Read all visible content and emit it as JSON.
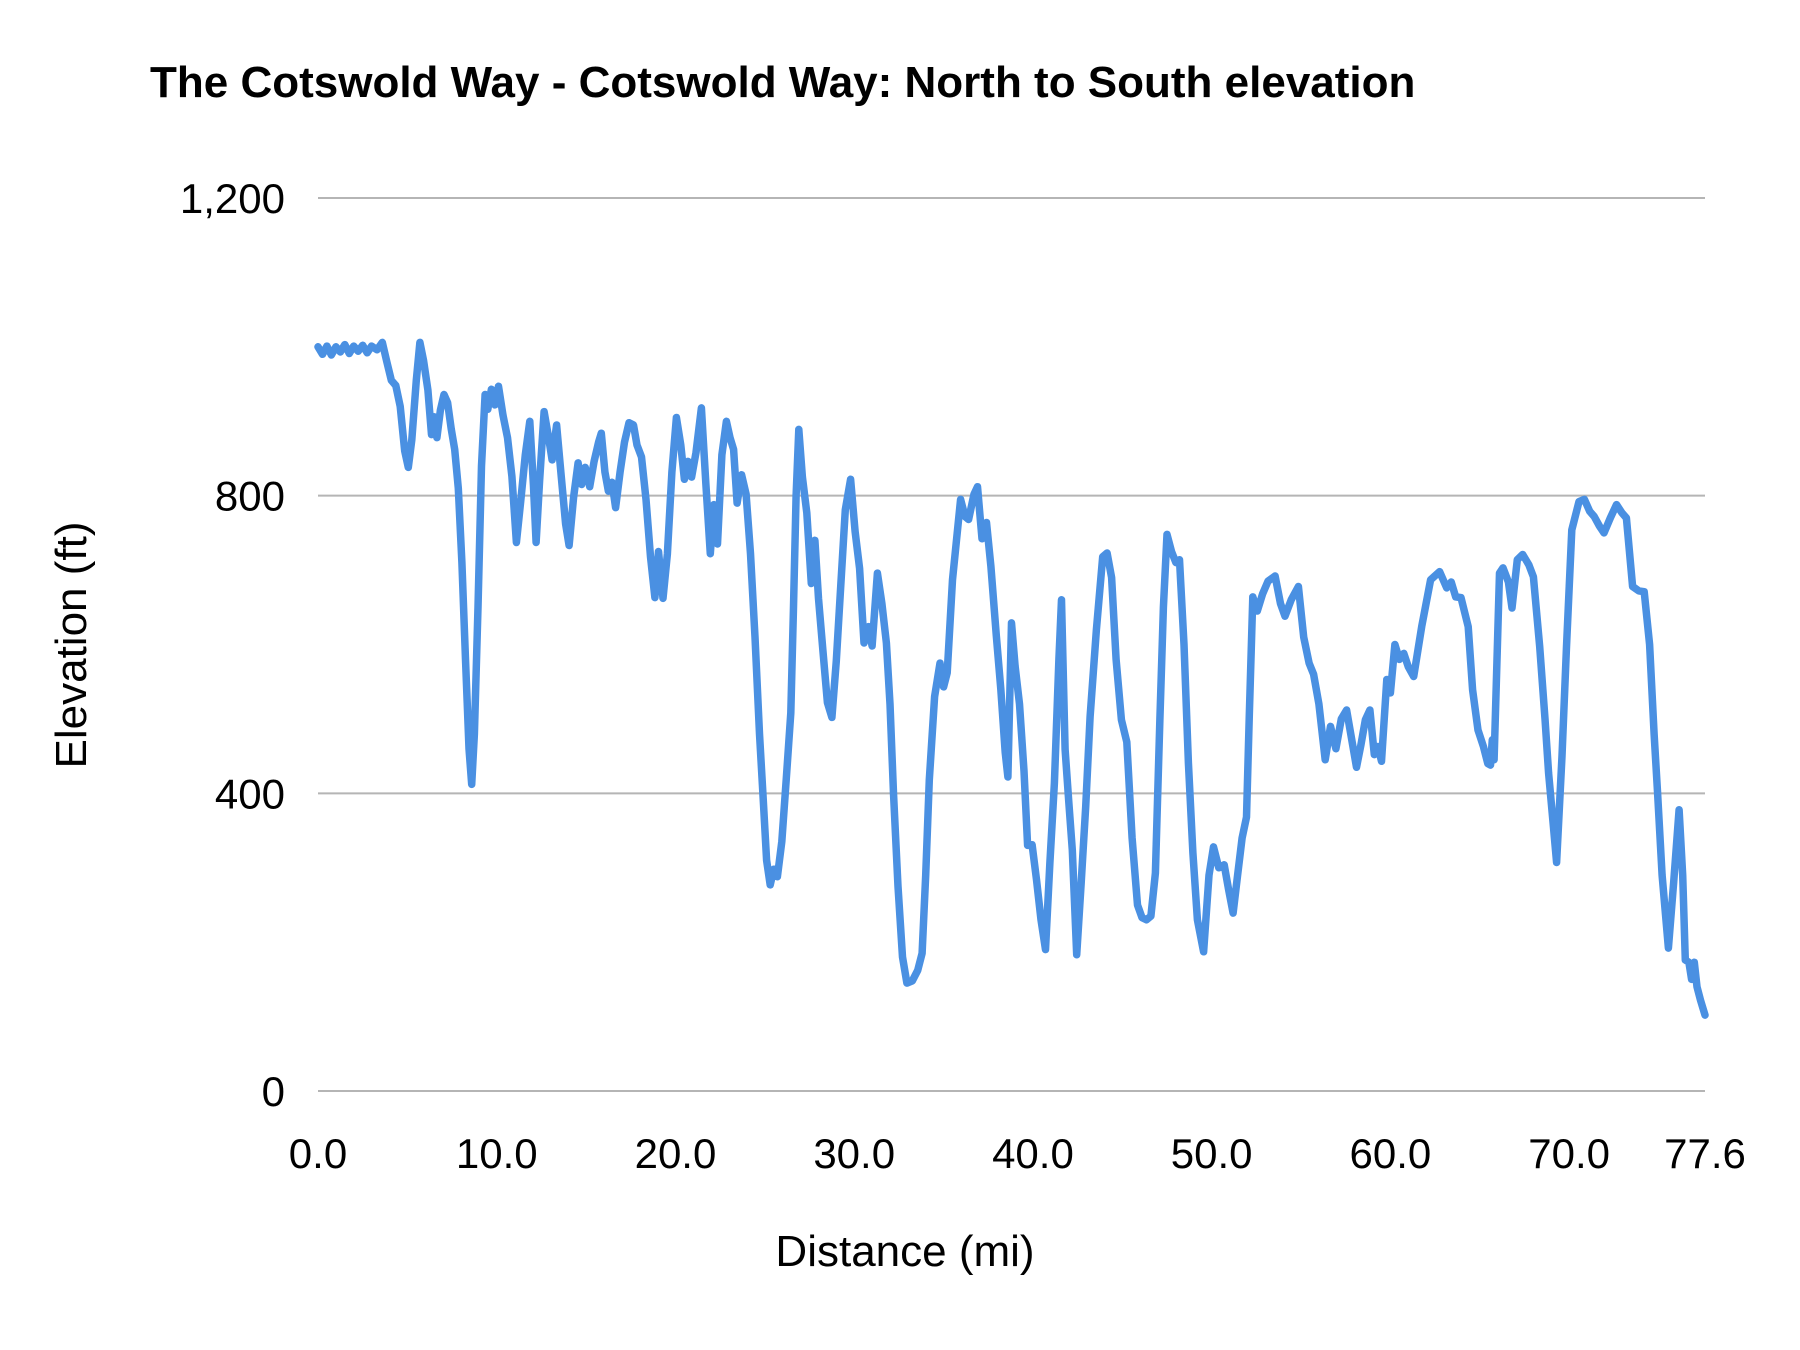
{
  "chart_data": {
    "type": "line",
    "title": "The Cotswold Way - Cotswold Way: North to South elevation",
    "xlabel": "Distance (mi)",
    "ylabel": "Elevation (ft)",
    "xlim": [
      0,
      77.6
    ],
    "ylim": [
      0,
      1200
    ],
    "grid": "horizontal",
    "legend": "none",
    "line_color": "#4a90e2",
    "grid_color": "#b5b5b5",
    "text_color": "#000000",
    "x_ticks": [
      {
        "label": "0.0",
        "value": 0
      },
      {
        "label": "10.0",
        "value": 10
      },
      {
        "label": "20.0",
        "value": 20
      },
      {
        "label": "30.0",
        "value": 30
      },
      {
        "label": "40.0",
        "value": 40
      },
      {
        "label": "50.0",
        "value": 50
      },
      {
        "label": "60.0",
        "value": 60
      },
      {
        "label": "70.0",
        "value": 70
      },
      {
        "label": "77.6",
        "value": 77.6
      }
    ],
    "y_ticks": [
      {
        "label": "0",
        "value": 0
      },
      {
        "label": "400",
        "value": 400
      },
      {
        "label": "800",
        "value": 800
      },
      {
        "label": "1,200",
        "value": 1200
      }
    ],
    "series": [
      {
        "name": "Elevation",
        "points": [
          [
            0,
            1000
          ],
          [
            0.25,
            990
          ],
          [
            0.5,
            1001
          ],
          [
            0.75,
            989
          ],
          [
            1,
            1000
          ],
          [
            1.25,
            993
          ],
          [
            1.5,
            1003
          ],
          [
            1.75,
            991
          ],
          [
            2,
            1001
          ],
          [
            2.25,
            994
          ],
          [
            2.5,
            1002
          ],
          [
            2.75,
            992
          ],
          [
            3,
            1001
          ],
          [
            3.3,
            996
          ],
          [
            3.6,
            1006
          ],
          [
            3.85,
            980
          ],
          [
            4.1,
            955
          ],
          [
            4.35,
            948
          ],
          [
            4.6,
            920
          ],
          [
            4.85,
            860
          ],
          [
            5.05,
            838
          ],
          [
            5.25,
            875
          ],
          [
            5.5,
            955
          ],
          [
            5.7,
            1006
          ],
          [
            5.9,
            982
          ],
          [
            6.15,
            942
          ],
          [
            6.35,
            882
          ],
          [
            6.5,
            906
          ],
          [
            6.65,
            878
          ],
          [
            6.85,
            915
          ],
          [
            7.05,
            936
          ],
          [
            7.25,
            925
          ],
          [
            7.45,
            890
          ],
          [
            7.65,
            862
          ],
          [
            7.85,
            810
          ],
          [
            8.05,
            710
          ],
          [
            8.25,
            580
          ],
          [
            8.45,
            460
          ],
          [
            8.6,
            412
          ],
          [
            8.75,
            480
          ],
          [
            8.95,
            650
          ],
          [
            9.15,
            840
          ],
          [
            9.35,
            936
          ],
          [
            9.5,
            916
          ],
          [
            9.7,
            943
          ],
          [
            9.9,
            922
          ],
          [
            10.1,
            947
          ],
          [
            10.35,
            908
          ],
          [
            10.6,
            878
          ],
          [
            10.85,
            826
          ],
          [
            11.1,
            737
          ],
          [
            11.35,
            795
          ],
          [
            11.6,
            855
          ],
          [
            11.85,
            900
          ],
          [
            12.05,
            815
          ],
          [
            12.2,
            737
          ],
          [
            12.4,
            820
          ],
          [
            12.65,
            913
          ],
          [
            12.9,
            878
          ],
          [
            13.1,
            848
          ],
          [
            13.35,
            895
          ],
          [
            13.6,
            828
          ],
          [
            13.85,
            762
          ],
          [
            14.05,
            733
          ],
          [
            14.3,
            798
          ],
          [
            14.55,
            844
          ],
          [
            14.75,
            815
          ],
          [
            14.95,
            838
          ],
          [
            15.2,
            812
          ],
          [
            15.45,
            846
          ],
          [
            15.7,
            872
          ],
          [
            15.85,
            884
          ],
          [
            16.05,
            832
          ],
          [
            16.25,
            806
          ],
          [
            16.45,
            818
          ],
          [
            16.65,
            784
          ],
          [
            16.9,
            832
          ],
          [
            17.15,
            872
          ],
          [
            17.4,
            898
          ],
          [
            17.65,
            895
          ],
          [
            17.85,
            868
          ],
          [
            18.1,
            852
          ],
          [
            18.35,
            795
          ],
          [
            18.6,
            718
          ],
          [
            18.85,
            663
          ],
          [
            19.05,
            725
          ],
          [
            19.3,
            662
          ],
          [
            19.55,
            722
          ],
          [
            19.8,
            832
          ],
          [
            20.05,
            905
          ],
          [
            20.3,
            868
          ],
          [
            20.5,
            822
          ],
          [
            20.7,
            846
          ],
          [
            20.9,
            825
          ],
          [
            21.15,
            858
          ],
          [
            21.45,
            918
          ],
          [
            21.7,
            815
          ],
          [
            21.95,
            722
          ],
          [
            22.15,
            788
          ],
          [
            22.35,
            735
          ],
          [
            22.6,
            855
          ],
          [
            22.85,
            900
          ],
          [
            23.05,
            878
          ],
          [
            23.25,
            862
          ],
          [
            23.45,
            790
          ],
          [
            23.7,
            828
          ],
          [
            23.95,
            802
          ],
          [
            24.2,
            722
          ],
          [
            24.45,
            610
          ],
          [
            24.7,
            480
          ],
          [
            24.9,
            395
          ],
          [
            25.1,
            310
          ],
          [
            25.3,
            277
          ],
          [
            25.5,
            298
          ],
          [
            25.7,
            288
          ],
          [
            25.95,
            335
          ],
          [
            26.2,
            420
          ],
          [
            26.45,
            508
          ],
          [
            26.6,
            645
          ],
          [
            26.75,
            800
          ],
          [
            26.9,
            889
          ],
          [
            27.1,
            825
          ],
          [
            27.35,
            777
          ],
          [
            27.6,
            682
          ],
          [
            27.8,
            740
          ],
          [
            28,
            662
          ],
          [
            28.25,
            592
          ],
          [
            28.5,
            522
          ],
          [
            28.75,
            502
          ],
          [
            29,
            578
          ],
          [
            29.25,
            680
          ],
          [
            29.5,
            781
          ],
          [
            29.8,
            822
          ],
          [
            30.05,
            752
          ],
          [
            30.3,
            702
          ],
          [
            30.55,
            602
          ],
          [
            30.8,
            624
          ],
          [
            31,
            598
          ],
          [
            31.3,
            696
          ],
          [
            31.55,
            655
          ],
          [
            31.8,
            602
          ],
          [
            32,
            520
          ],
          [
            32.2,
            400
          ],
          [
            32.45,
            275
          ],
          [
            32.7,
            180
          ],
          [
            32.95,
            145
          ],
          [
            33.25,
            148
          ],
          [
            33.55,
            162
          ],
          [
            33.8,
            185
          ],
          [
            34,
            290
          ],
          [
            34.2,
            418
          ],
          [
            34.5,
            530
          ],
          [
            34.8,
            575
          ],
          [
            35,
            543
          ],
          [
            35.2,
            562
          ],
          [
            35.5,
            687
          ],
          [
            35.95,
            795
          ],
          [
            36.2,
            772
          ],
          [
            36.4,
            768
          ],
          [
            36.7,
            802
          ],
          [
            36.9,
            812
          ],
          [
            37.15,
            742
          ],
          [
            37.4,
            764
          ],
          [
            37.65,
            705
          ],
          [
            37.95,
            612
          ],
          [
            38.2,
            540
          ],
          [
            38.45,
            455
          ],
          [
            38.6,
            422
          ],
          [
            38.8,
            629
          ],
          [
            39,
            571
          ],
          [
            39.25,
            520
          ],
          [
            39.5,
            430
          ],
          [
            39.7,
            330
          ],
          [
            39.95,
            331
          ],
          [
            40.2,
            284
          ],
          [
            40.45,
            230
          ],
          [
            40.7,
            190
          ],
          [
            40.95,
            307
          ],
          [
            41.2,
            414
          ],
          [
            41.45,
            580
          ],
          [
            41.6,
            660
          ],
          [
            41.8,
            459
          ],
          [
            42,
            390
          ],
          [
            42.2,
            324
          ],
          [
            42.45,
            183
          ],
          [
            42.7,
            280
          ],
          [
            42.95,
            382
          ],
          [
            43.2,
            503
          ],
          [
            43.55,
            620
          ],
          [
            43.9,
            718
          ],
          [
            44.15,
            723
          ],
          [
            44.4,
            690
          ],
          [
            44.65,
            580
          ],
          [
            44.95,
            499
          ],
          [
            45.25,
            469
          ],
          [
            45.55,
            340
          ],
          [
            45.85,
            250
          ],
          [
            46.1,
            233
          ],
          [
            46.35,
            230
          ],
          [
            46.6,
            235
          ],
          [
            46.85,
            293
          ],
          [
            47.1,
            500
          ],
          [
            47.3,
            650
          ],
          [
            47.5,
            748
          ],
          [
            47.75,
            725
          ],
          [
            48,
            710
          ],
          [
            48.2,
            714
          ],
          [
            48.45,
            600
          ],
          [
            48.7,
            441
          ],
          [
            48.95,
            320
          ],
          [
            49.2,
            230
          ],
          [
            49.55,
            187
          ],
          [
            49.85,
            290
          ],
          [
            50.1,
            328
          ],
          [
            50.4,
            300
          ],
          [
            50.7,
            304
          ],
          [
            50.95,
            270
          ],
          [
            51.2,
            239
          ],
          [
            51.45,
            290
          ],
          [
            51.7,
            340
          ],
          [
            51.95,
            368
          ],
          [
            52.1,
            500
          ],
          [
            52.3,
            664
          ],
          [
            52.55,
            645
          ],
          [
            52.85,
            668
          ],
          [
            53.15,
            685
          ],
          [
            53.55,
            692
          ],
          [
            53.85,
            655
          ],
          [
            54.1,
            638
          ],
          [
            54.45,
            660
          ],
          [
            54.85,
            678
          ],
          [
            55.15,
            610
          ],
          [
            55.45,
            575
          ],
          [
            55.7,
            560
          ],
          [
            56,
            520
          ],
          [
            56.35,
            445
          ],
          [
            56.65,
            490
          ],
          [
            56.95,
            460
          ],
          [
            57.25,
            500
          ],
          [
            57.55,
            512
          ],
          [
            57.85,
            470
          ],
          [
            58.1,
            435
          ],
          [
            58.35,
            465
          ],
          [
            58.6,
            499
          ],
          [
            58.85,
            512
          ],
          [
            59.1,
            452
          ],
          [
            59.3,
            463
          ],
          [
            59.5,
            443
          ],
          [
            59.8,
            553
          ],
          [
            60,
            535
          ],
          [
            60.25,
            600
          ],
          [
            60.5,
            580
          ],
          [
            60.75,
            588
          ],
          [
            61,
            570
          ],
          [
            61.3,
            557
          ],
          [
            61.75,
            624
          ],
          [
            62.25,
            687
          ],
          [
            62.75,
            698
          ],
          [
            63.15,
            676
          ],
          [
            63.4,
            684
          ],
          [
            63.65,
            664
          ],
          [
            63.95,
            663
          ],
          [
            64.35,
            624
          ],
          [
            64.6,
            539
          ],
          [
            64.9,
            485
          ],
          [
            65.2,
            463
          ],
          [
            65.45,
            440
          ],
          [
            65.6,
            438
          ],
          [
            65.7,
            472
          ],
          [
            65.8,
            445
          ],
          [
            66.1,
            696
          ],
          [
            66.3,
            703
          ],
          [
            66.6,
            684
          ],
          [
            66.8,
            649
          ],
          [
            67.1,
            714
          ],
          [
            67.4,
            721
          ],
          [
            67.75,
            707
          ],
          [
            68,
            691
          ],
          [
            68.35,
            597
          ],
          [
            68.65,
            500
          ],
          [
            68.85,
            427
          ],
          [
            69.1,
            360
          ],
          [
            69.3,
            307
          ],
          [
            69.6,
            450
          ],
          [
            69.85,
            597
          ],
          [
            70.15,
            754
          ],
          [
            70.55,
            792
          ],
          [
            70.85,
            795
          ],
          [
            71.15,
            779
          ],
          [
            71.4,
            772
          ],
          [
            71.7,
            759
          ],
          [
            71.95,
            750
          ],
          [
            72.3,
            770
          ],
          [
            72.65,
            788
          ],
          [
            72.95,
            777
          ],
          [
            73.2,
            770
          ],
          [
            73.55,
            678
          ],
          [
            73.9,
            672
          ],
          [
            74.2,
            671
          ],
          [
            74.5,
            600
          ],
          [
            74.75,
            480
          ],
          [
            74.95,
            400
          ],
          [
            75.2,
            290
          ],
          [
            75.55,
            192
          ],
          [
            75.85,
            281
          ],
          [
            76.15,
            378
          ],
          [
            76.35,
            290
          ],
          [
            76.5,
            176
          ],
          [
            76.7,
            173
          ],
          [
            76.85,
            150
          ],
          [
            77,
            173
          ],
          [
            77.15,
            140
          ],
          [
            77.35,
            122
          ],
          [
            77.6,
            102
          ]
        ]
      }
    ]
  }
}
